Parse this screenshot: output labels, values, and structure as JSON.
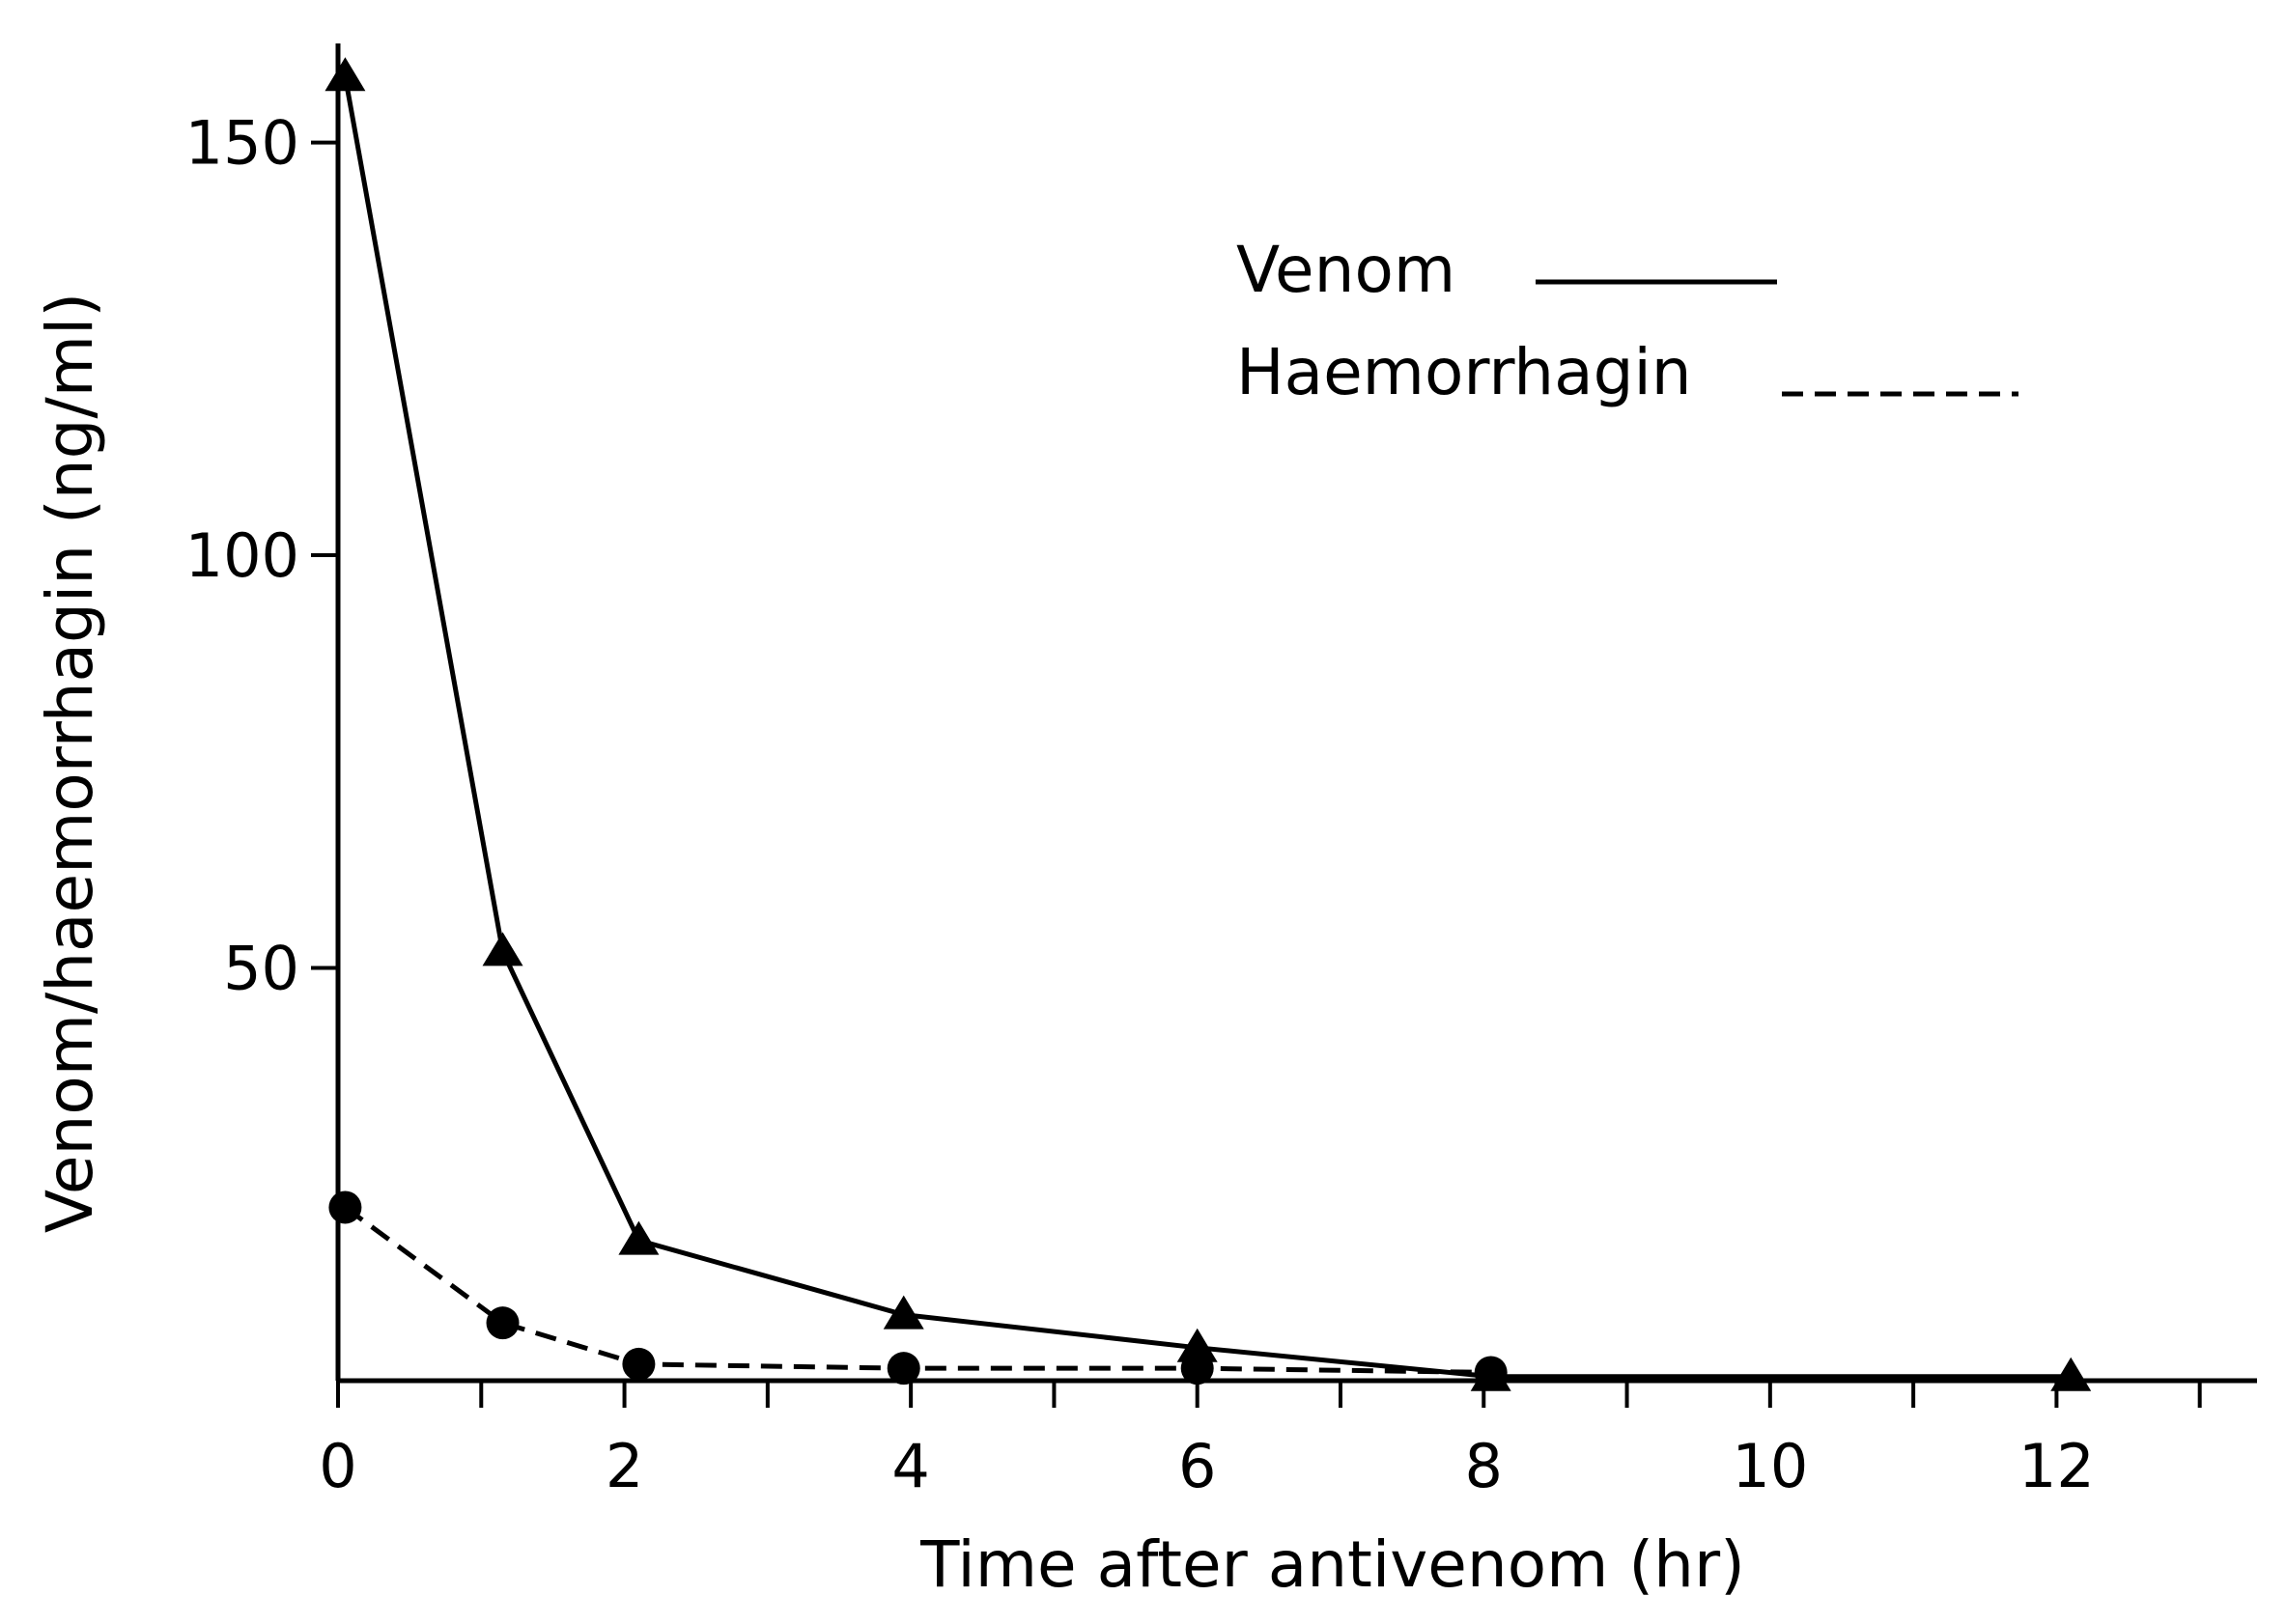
{
  "chart_data": {
    "type": "line",
    "xlabel": "Time after antivenom (hr)",
    "ylabel": "Venom/haemorrhagin (ng/ml)",
    "xlim": [
      0,
      13.4
    ],
    "ylim": [
      0,
      162
    ],
    "x_ticks": [
      0,
      2,
      4,
      6,
      8,
      10,
      12
    ],
    "x_minor_ticks": [
      1,
      3,
      5,
      7,
      9,
      11,
      13
    ],
    "y_ticks": [
      50,
      100,
      150
    ],
    "grid": false,
    "legend_position": "top-right",
    "series": [
      {
        "name": "Venom",
        "line_style": "solid",
        "marker": "triangle",
        "x": [
          0.05,
          1.15,
          2.1,
          3.95,
          6.0,
          8.05,
          12.1
        ],
        "y": [
          158,
          52,
          17,
          8,
          4,
          0.5,
          0.5
        ]
      },
      {
        "name": "Haemorrhagin",
        "line_style": "dashed",
        "marker": "circle",
        "x": [
          0.05,
          1.15,
          2.1,
          3.95,
          6.0,
          8.05
        ],
        "y": [
          21,
          7,
          2,
          1.5,
          1.5,
          1
        ]
      }
    ],
    "colors": {
      "line": "#000000",
      "axis": "#000000"
    }
  }
}
